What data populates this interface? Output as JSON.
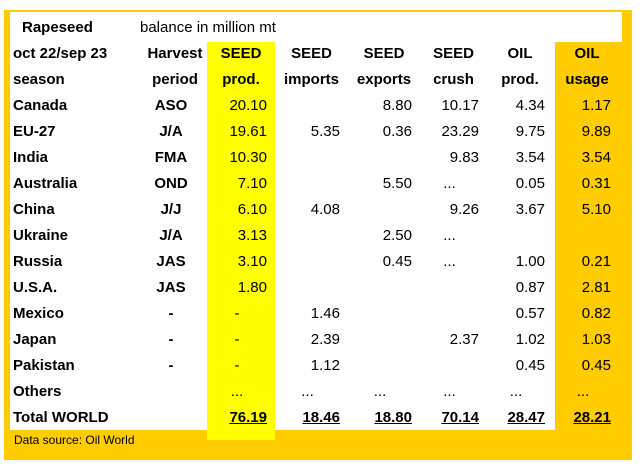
{
  "chart_data": {
    "type": "table",
    "title": "Rapeseed",
    "subtitle": "balance in million mt",
    "header": {
      "row1": [
        "oct 22/sep 23",
        "Harvest",
        "SEED",
        "SEED",
        "SEED",
        "SEED",
        "OIL",
        "OIL"
      ],
      "row2": [
        "season",
        "period",
        "prod.",
        "imports",
        "exports",
        "crush",
        "prod.",
        "usage"
      ]
    },
    "rows": [
      {
        "country": "Canada",
        "period": "ASO",
        "seed_prod": "20.10",
        "seed_imports": "",
        "seed_exports": "8.80",
        "seed_crush": "10.17",
        "oil_prod": "4.34",
        "oil_usage": "1.17"
      },
      {
        "country": "EU-27",
        "period": "J/A",
        "seed_prod": "19.61",
        "seed_imports": "5.35",
        "seed_exports": "0.36",
        "seed_crush": "23.29",
        "oil_prod": "9.75",
        "oil_usage": "9.89"
      },
      {
        "country": "India",
        "period": "FMA",
        "seed_prod": "10.30",
        "seed_imports": "",
        "seed_exports": "",
        "seed_crush": "9.83",
        "oil_prod": "3.54",
        "oil_usage": "3.54"
      },
      {
        "country": "Australia",
        "period": "OND",
        "seed_prod": "7.10",
        "seed_imports": "",
        "seed_exports": "5.50",
        "seed_crush": "...",
        "oil_prod": "0.05",
        "oil_usage": "0.31"
      },
      {
        "country": "China",
        "period": "J/J",
        "seed_prod": "6.10",
        "seed_imports": "4.08",
        "seed_exports": "",
        "seed_crush": "9.26",
        "oil_prod": "3.67",
        "oil_usage": "5.10"
      },
      {
        "country": "Ukraine",
        "period": "J/A",
        "seed_prod": "3.13",
        "seed_imports": "",
        "seed_exports": "2.50",
        "seed_crush": "...",
        "oil_prod": "",
        "oil_usage": ""
      },
      {
        "country": "Russia",
        "period": "JAS",
        "seed_prod": "3.10",
        "seed_imports": "",
        "seed_exports": "0.45",
        "seed_crush": "...",
        "oil_prod": "1.00",
        "oil_usage": "0.21"
      },
      {
        "country": "U.S.A.",
        "period": "JAS",
        "seed_prod": "1.80",
        "seed_imports": "",
        "seed_exports": "",
        "seed_crush": "",
        "oil_prod": "0.87",
        "oil_usage": "2.81"
      },
      {
        "country": "Mexico",
        "period": "-",
        "seed_prod": "-",
        "seed_imports": "1.46",
        "seed_exports": "",
        "seed_crush": "",
        "oil_prod": "0.57",
        "oil_usage": "0.82"
      },
      {
        "country": "Japan",
        "period": "-",
        "seed_prod": "-",
        "seed_imports": "2.39",
        "seed_exports": "",
        "seed_crush": "2.37",
        "oil_prod": "1.02",
        "oil_usage": "1.03"
      },
      {
        "country": "Pakistan",
        "period": "-",
        "seed_prod": "-",
        "seed_imports": "1.12",
        "seed_exports": "",
        "seed_crush": "",
        "oil_prod": "0.45",
        "oil_usage": "0.45"
      },
      {
        "country": "Others",
        "period": "",
        "seed_prod": "...",
        "seed_imports": "...",
        "seed_exports": "...",
        "seed_crush": "...",
        "oil_prod": "...",
        "oil_usage": "..."
      }
    ],
    "total": {
      "country": "Total WORLD",
      "period": "",
      "seed_prod": "76.19",
      "seed_imports": "18.46",
      "seed_exports": "18.80",
      "seed_crush": "70.14",
      "oil_prod": "28.47",
      "oil_usage": "28.21"
    },
    "source": "Data source: Oil World",
    "colors": {
      "frame": "#ffcc00",
      "seed_prod_highlight": "#ffff00",
      "oil_usage_highlight": "#ffcc00"
    }
  }
}
